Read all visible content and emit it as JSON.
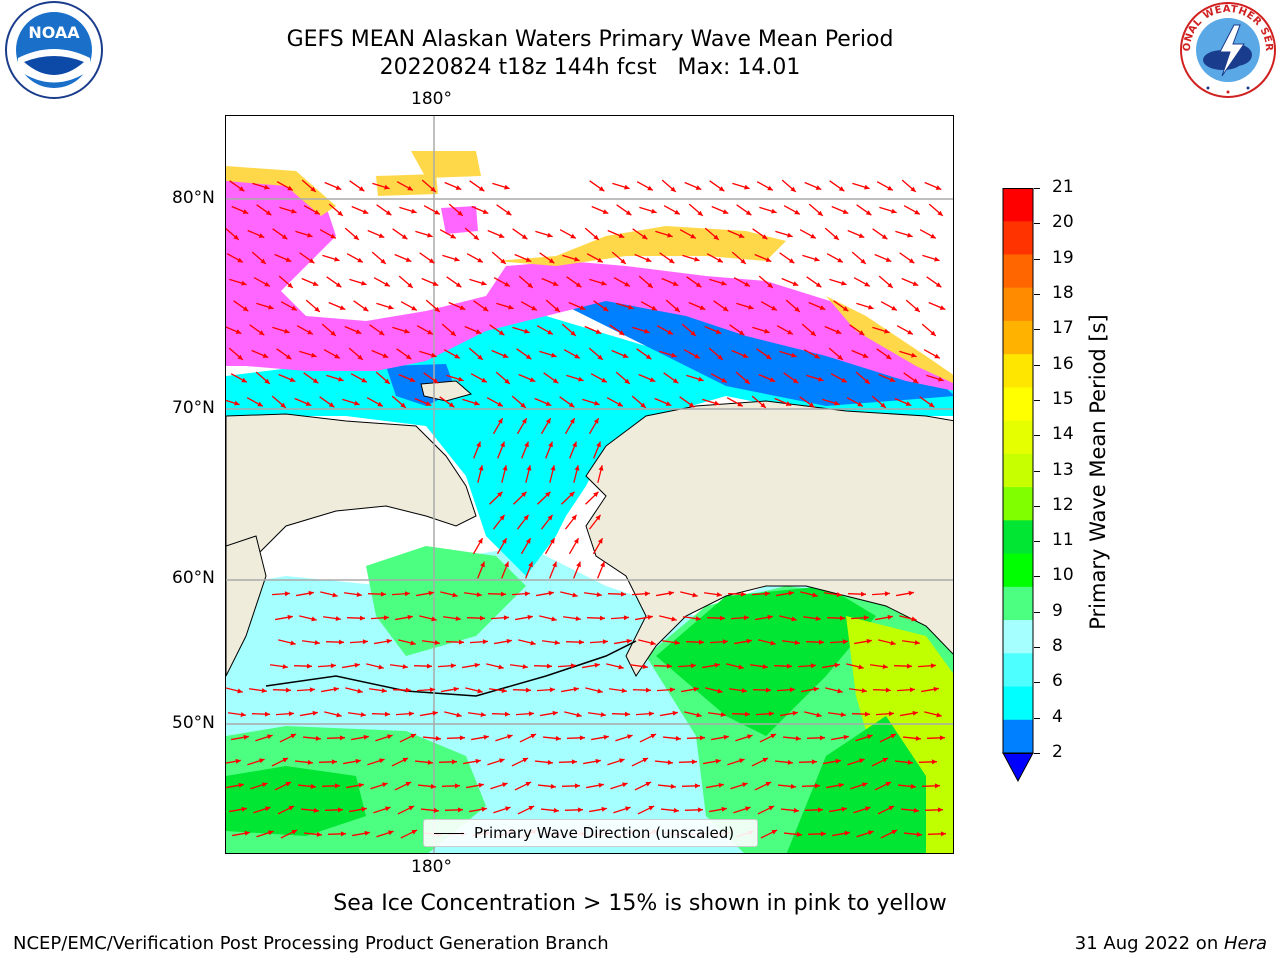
{
  "header": {
    "title_line1": "GEFS MEAN Alaskan Waters Primary Wave Mean Period",
    "title_line2": "20220824 t18z 144h fcst   Max: 14.01"
  },
  "logos": {
    "left": "noaa-logo",
    "left_text": "NOAA",
    "right": "national-weather-service-logo",
    "right_text": "NATIONAL WEATHER SERVICE"
  },
  "map": {
    "lon_label_top": "180°",
    "lon_label_bottom": "180°",
    "lat_labels": [
      "80°N",
      "70°N",
      "60°N",
      "50°N"
    ],
    "legend_label": "Primary Wave Direction (unscaled)",
    "colors": {
      "land": "#efecdc",
      "ice_pink": "#ff66ff",
      "ice_yellow": "#ffd84a",
      "deep_blue": "#0080ff",
      "cyan": "#00ffff",
      "light_cyan": "#a6ffff",
      "green_light": "#4dff80",
      "green": "#00e632",
      "yellow_green": "#c0ff00",
      "arrow": "#ff0000"
    }
  },
  "colorbar": {
    "label": "Primary Wave Mean Period [s]",
    "ticks": [
      "21",
      "20",
      "19",
      "18",
      "17",
      "16",
      "15",
      "14",
      "13",
      "12",
      "11",
      "10",
      "9",
      "8",
      "6",
      "4",
      "2"
    ],
    "colors": [
      "#ff0000",
      "#ff3300",
      "#ff6600",
      "#ff8c00",
      "#ffb300",
      "#ffe600",
      "#ffff00",
      "#e6ff00",
      "#c8ff00",
      "#80ff00",
      "#00e632",
      "#00ff00",
      "#4dff80",
      "#a6ffff",
      "#4dffff",
      "#00ffff",
      "#0080ff"
    ],
    "extend_color": "#0000ff"
  },
  "caption": "Sea Ice Concentration > 15% is shown in pink to yellow",
  "footer": {
    "left": "NCEP/EMC/Verification Post Processing Product Generation Branch",
    "date": "31 Aug 2022 on ",
    "host": "Hera"
  }
}
